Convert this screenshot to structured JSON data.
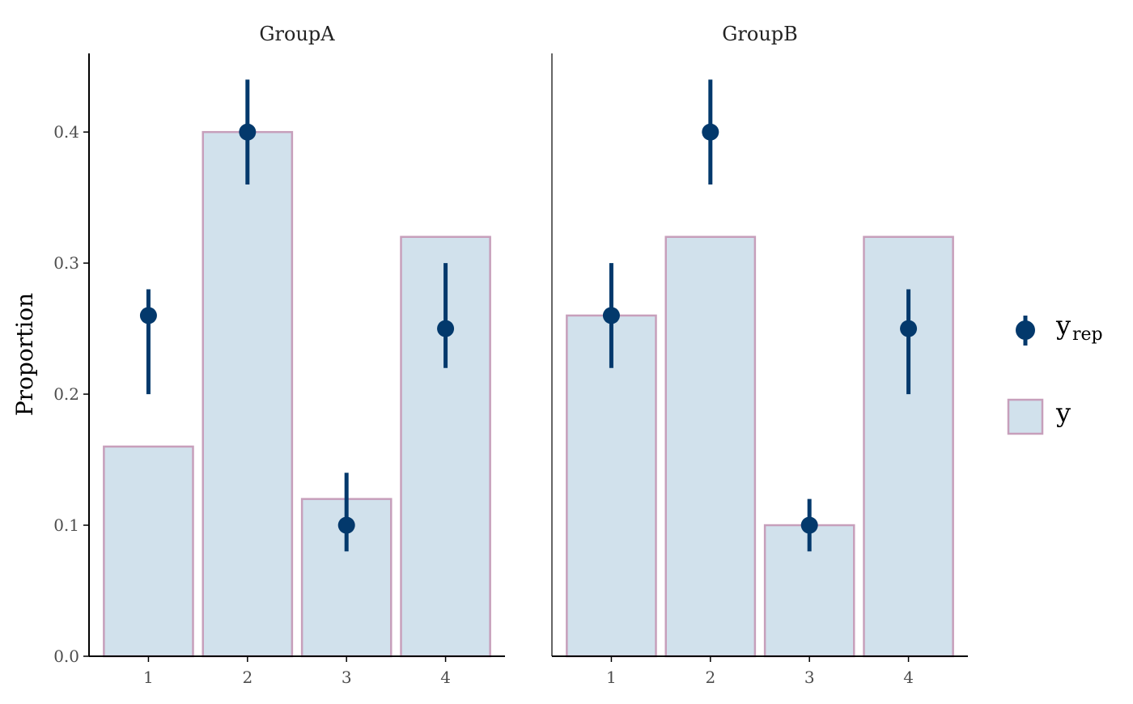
{
  "colors": {
    "bar_fill": "#d1e1ec",
    "bar_stroke": "#c79fbb",
    "point": "#03396c",
    "axis": "#000000"
  },
  "chart_data": {
    "type": "bar",
    "ylabel": "Proportion",
    "ylim": [
      0,
      0.46
    ],
    "yticks": [
      0.0,
      0.1,
      0.2,
      0.3,
      0.4
    ],
    "ytick_labels": [
      "0.0",
      "0.1",
      "0.2",
      "0.3",
      "0.4"
    ],
    "categories": [
      "1",
      "2",
      "3",
      "4"
    ],
    "panels": [
      {
        "title": "GroupA",
        "y": [
          0.16,
          0.4,
          0.12,
          0.32
        ],
        "yrep_point": [
          0.26,
          0.4,
          0.1,
          0.25
        ],
        "yrep_low": [
          0.2,
          0.36,
          0.08,
          0.22
        ],
        "yrep_high": [
          0.28,
          0.44,
          0.14,
          0.3
        ]
      },
      {
        "title": "GroupB",
        "y": [
          0.26,
          0.32,
          0.1,
          0.32
        ],
        "yrep_point": [
          0.26,
          0.4,
          0.1,
          0.25
        ],
        "yrep_low": [
          0.22,
          0.36,
          0.08,
          0.2
        ],
        "yrep_high": [
          0.3,
          0.44,
          0.12,
          0.28
        ]
      }
    ],
    "legend": {
      "position": "right",
      "items": [
        {
          "symbol": "point-range",
          "label": "y",
          "subscript": "rep"
        },
        {
          "symbol": "bar",
          "label": "y",
          "subscript": ""
        }
      ]
    }
  }
}
